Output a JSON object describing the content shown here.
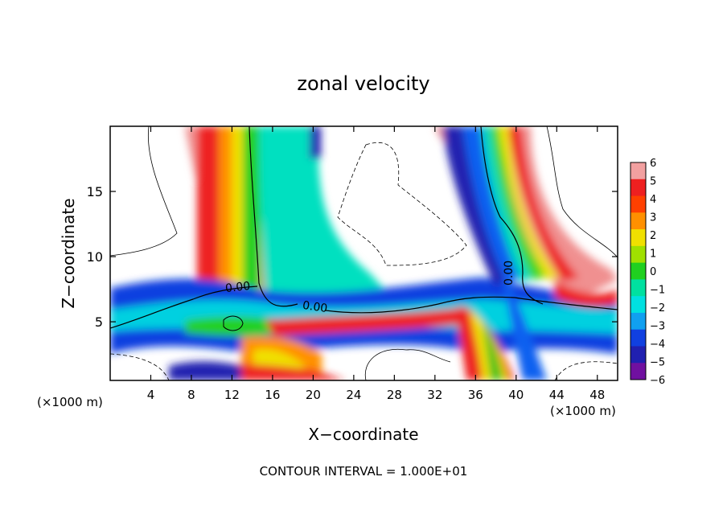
{
  "chart_data": {
    "type": "heatmap",
    "title": "zonal velocity",
    "xlabel": "X−coordinate",
    "ylabel": "Z−coordinate",
    "x_unit_left": "(×1000 m)",
    "x_unit_right": "(×1000 m)",
    "xlim": [
      0,
      50
    ],
    "ylim": [
      0.5,
      20
    ],
    "x_ticks": [
      4,
      8,
      12,
      16,
      20,
      24,
      28,
      32,
      36,
      40,
      44,
      48
    ],
    "y_ticks": [
      5,
      10,
      15
    ],
    "contour_label": "0.00",
    "footer": "CONTOUR INTERVAL = 1.000E+01",
    "colorbar": {
      "min": -6,
      "max": 6,
      "labels": [
        "6",
        "5",
        "4",
        "3",
        "2",
        "1",
        "0",
        "−1",
        "−2",
        "−3",
        "−4",
        "−5",
        "−6"
      ],
      "colors": [
        "#f2a0a0",
        "#ee2020",
        "#ff4000",
        "#ff9000",
        "#f0e000",
        "#a0e000",
        "#20d020",
        "#00e0a0",
        "#00e0e0",
        "#10a0f0",
        "#1040e0",
        "#2020b0",
        "#7010a0"
      ]
    }
  }
}
